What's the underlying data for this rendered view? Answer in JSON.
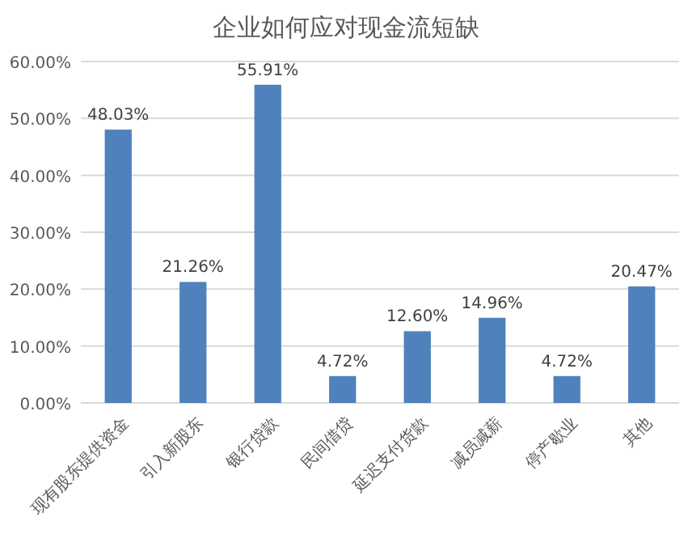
{
  "chart_data": {
    "type": "bar",
    "title": "企业如何应对现金流短缺",
    "categories": [
      "现有股东提供资金",
      "引入新股东",
      "银行贷款",
      "民间借贷",
      "延迟支付货款",
      "减员减薪",
      "停产歇业",
      "其他"
    ],
    "values": [
      48.03,
      21.26,
      55.91,
      4.72,
      12.6,
      14.96,
      4.72,
      20.47
    ],
    "value_labels": [
      "48.03%",
      "21.26%",
      "55.91%",
      "4.72%",
      "12.60%",
      "14.96%",
      "4.72%",
      "20.47%"
    ],
    "color": "#4f81bd",
    "ylim": [
      0,
      60
    ],
    "yticks": [
      {
        "value": 0,
        "label": "0.00%"
      },
      {
        "value": 10,
        "label": "10.00%"
      },
      {
        "value": 20,
        "label": "20.00%"
      },
      {
        "value": 30,
        "label": "30.00%"
      },
      {
        "value": 40,
        "label": "40.00%"
      },
      {
        "value": 50,
        "label": "50.00%"
      },
      {
        "value": 60,
        "label": "60.00%"
      }
    ],
    "grid": "y"
  }
}
